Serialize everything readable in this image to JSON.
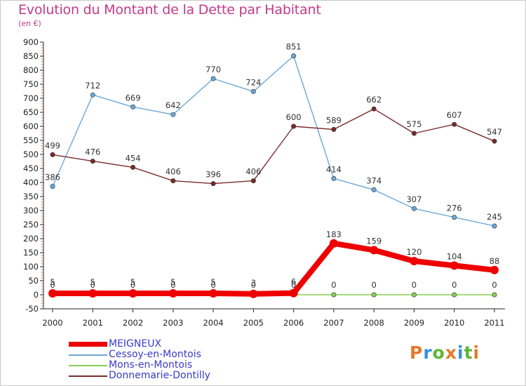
{
  "chart_data": {
    "type": "line",
    "title": "Evolution du Montant de la Dette par Habitant",
    "subtitle": "(en €)",
    "xlabel": "",
    "ylabel": "",
    "categories": [
      "2000",
      "2001",
      "2002",
      "2003",
      "2004",
      "2005",
      "2006",
      "2007",
      "2008",
      "2009",
      "2010",
      "2011"
    ],
    "ylim": [
      -50,
      900
    ],
    "yticks": [
      -50,
      0,
      50,
      100,
      150,
      200,
      250,
      300,
      350,
      400,
      450,
      500,
      550,
      600,
      650,
      700,
      750,
      800,
      850,
      900
    ],
    "grid": false,
    "legend_position": "bottom-left",
    "series": [
      {
        "name": "MEIGNEUX",
        "color": "#ee0000",
        "values": [
          5,
          5,
          5,
          5,
          5,
          3,
          6,
          183,
          159,
          120,
          104,
          88
        ],
        "labels": [
          "5",
          "5",
          "5",
          "5",
          "5",
          "3",
          "6",
          "183",
          "159",
          "120",
          "104",
          "88"
        ],
        "thick": true
      },
      {
        "name": "Cessoy-en-Montois",
        "color": "#6aa8d8",
        "values": [
          386,
          712,
          669,
          642,
          770,
          724,
          851,
          414,
          374,
          307,
          276,
          245
        ],
        "labels": [
          "386",
          "712",
          "669",
          "642",
          "770",
          "724",
          "851",
          "414",
          "374",
          "307",
          "276",
          "245"
        ]
      },
      {
        "name": "Mons-en-Montois",
        "color": "#88d055",
        "values": [
          0,
          0,
          0,
          0,
          0,
          0,
          0,
          0,
          0,
          0,
          0,
          0
        ],
        "labels": [
          "0",
          "0",
          "0",
          "0",
          "0",
          "0",
          "0",
          "0",
          "0",
          "0",
          "0",
          "0"
        ]
      },
      {
        "name": "Donnemarie-Dontilly",
        "color": "#7a2a2a",
        "values": [
          499,
          476,
          454,
          406,
          396,
          406,
          600,
          589,
          662,
          575,
          607,
          547
        ],
        "labels": [
          "499",
          "476",
          "454",
          "406",
          "396",
          "406",
          "600",
          "589",
          "662",
          "575",
          "607",
          "547"
        ]
      }
    ]
  },
  "branding": {
    "logo_text": "Proxiti"
  }
}
